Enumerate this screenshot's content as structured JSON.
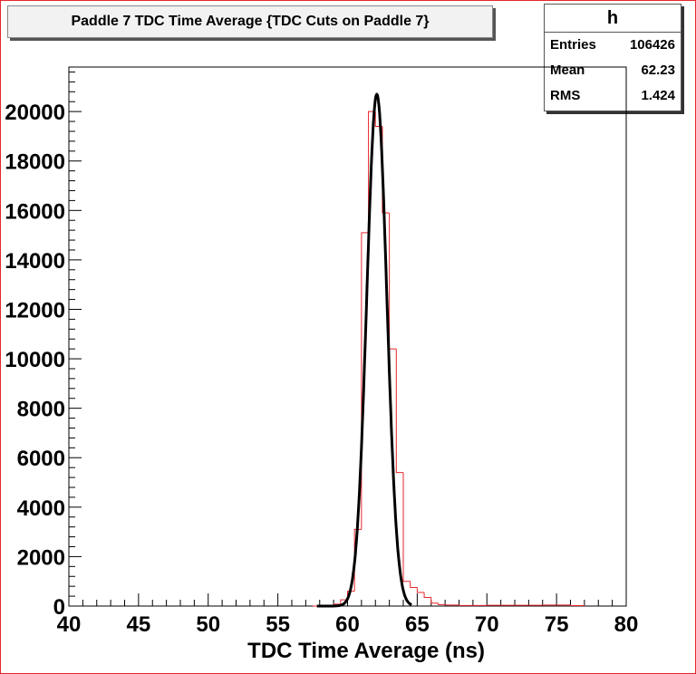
{
  "title": "Paddle 7 TDC Time Average {TDC Cuts on Paddle 7}",
  "stats": {
    "name": "h",
    "rows": [
      {
        "label": "Entries",
        "value": "106426"
      },
      {
        "label": "Mean",
        "value": "62.23"
      },
      {
        "label": "RMS",
        "value": "1.424"
      }
    ]
  },
  "colors": {
    "histogram": "#e8262a",
    "fit": "#000000",
    "frame": "#e8262a"
  },
  "chart_data": {
    "type": "histogram",
    "xlabel": "TDC Time Average (ns)",
    "ylabel": "",
    "xlim": [
      40,
      80
    ],
    "ylim": [
      0,
      21800
    ],
    "x_ticks": [
      "40",
      "45",
      "50",
      "55",
      "60",
      "65",
      "70",
      "75",
      "80"
    ],
    "y_ticks": [
      "0",
      "2000",
      "4000",
      "6000",
      "8000",
      "10000",
      "12000",
      "14000",
      "16000",
      "18000",
      "20000"
    ],
    "bins": [
      {
        "x0": 57.5,
        "x1": 58,
        "y": 0
      },
      {
        "x0": 58,
        "x1": 58.5,
        "y": 10
      },
      {
        "x0": 58.5,
        "x1": 59,
        "y": 30
      },
      {
        "x0": 59,
        "x1": 59.5,
        "y": 80
      },
      {
        "x0": 59.5,
        "x1": 60,
        "y": 250
      },
      {
        "x0": 60,
        "x1": 60.5,
        "y": 600
      },
      {
        "x0": 60.5,
        "x1": 61,
        "y": 3100
      },
      {
        "x0": 61,
        "x1": 61.5,
        "y": 15100
      },
      {
        "x0": 61.5,
        "x1": 62,
        "y": 20000
      },
      {
        "x0": 62,
        "x1": 62.5,
        "y": 19400
      },
      {
        "x0": 62.5,
        "x1": 63,
        "y": 15900
      },
      {
        "x0": 63,
        "x1": 63.5,
        "y": 10400
      },
      {
        "x0": 63.5,
        "x1": 64,
        "y": 5400
      },
      {
        "x0": 64,
        "x1": 64.5,
        "y": 1000
      },
      {
        "x0": 64.5,
        "x1": 65,
        "y": 750
      },
      {
        "x0": 65,
        "x1": 65.5,
        "y": 550
      },
      {
        "x0": 65.5,
        "x1": 66,
        "y": 350
      },
      {
        "x0": 66,
        "x1": 66.5,
        "y": 120
      },
      {
        "x0": 66.5,
        "x1": 67,
        "y": 60
      },
      {
        "x0": 67,
        "x1": 68,
        "y": 40
      },
      {
        "x0": 68,
        "x1": 70,
        "y": 25
      },
      {
        "x0": 70,
        "x1": 74,
        "y": 30
      },
      {
        "x0": 74,
        "x1": 76,
        "y": 40
      },
      {
        "x0": 76,
        "x1": 77,
        "y": 20
      }
    ],
    "fit": {
      "type": "gaussian",
      "amplitude": 20700,
      "mean": 62.1,
      "sigma": 0.72,
      "xrange": [
        57.8,
        64.6
      ]
    }
  }
}
